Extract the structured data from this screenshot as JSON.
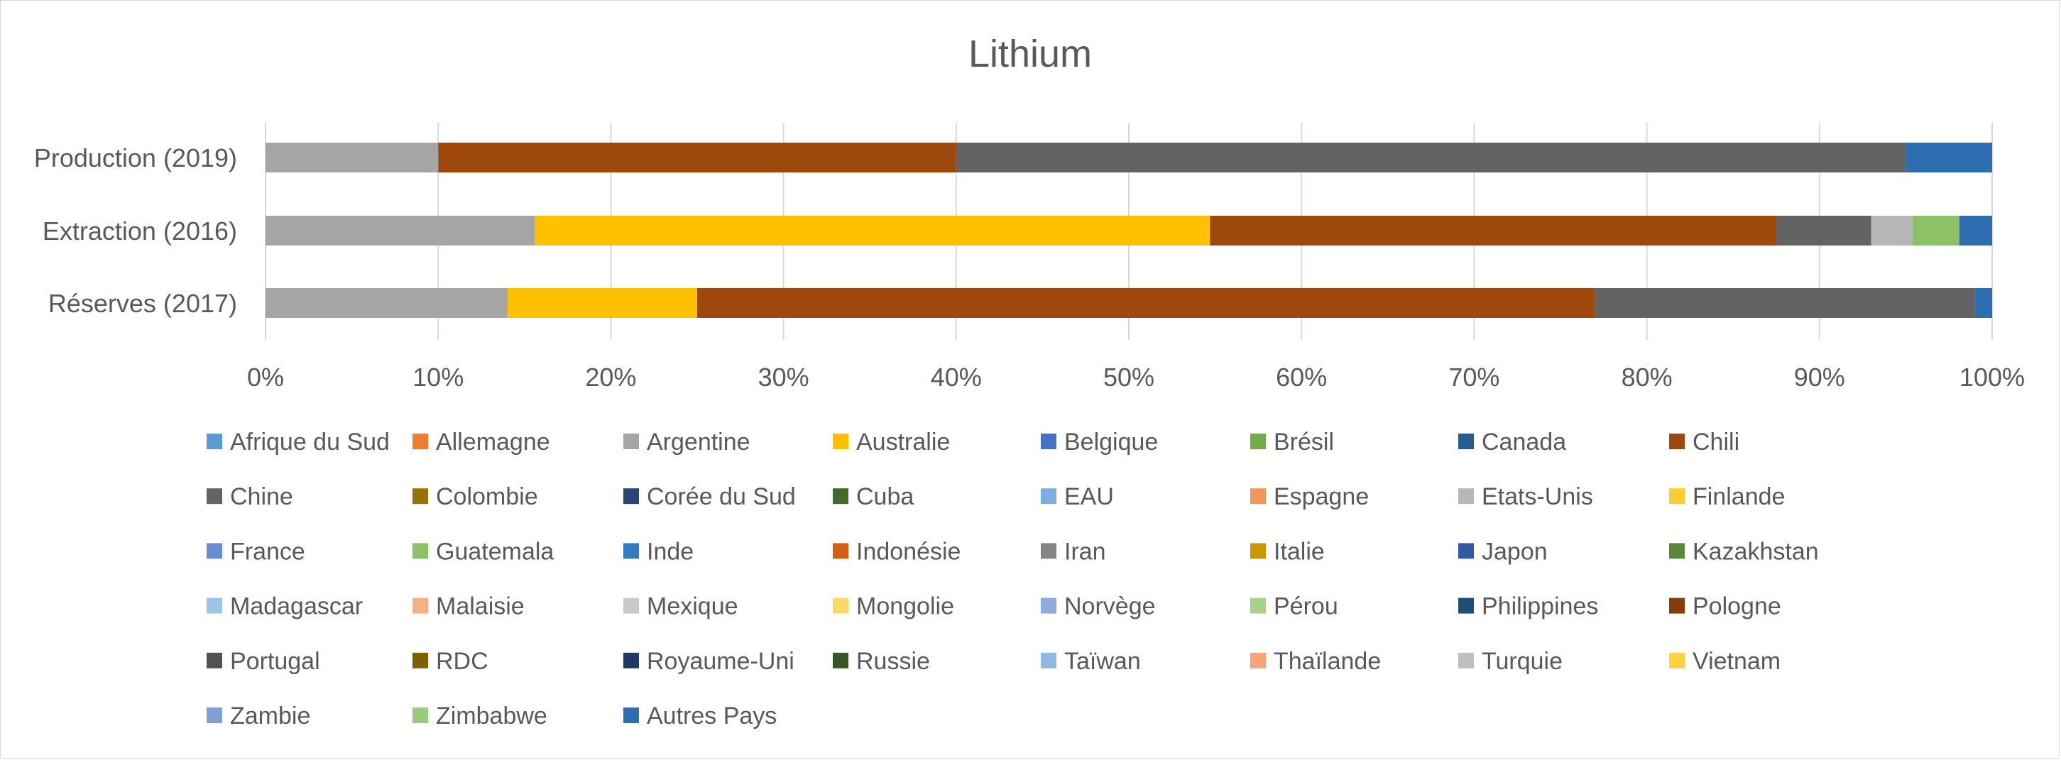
{
  "chart_data": {
    "type": "bar",
    "orientation": "horizontal",
    "stacked": "percent",
    "title": "Lithium",
    "categories": [
      "Production (2019)",
      "Extraction (2016)",
      "Réserves (2017)"
    ],
    "x_ticks": [
      "0%",
      "10%",
      "20%",
      "30%",
      "40%",
      "50%",
      "60%",
      "70%",
      "80%",
      "90%",
      "100%"
    ],
    "xlim": [
      0,
      100
    ],
    "grid": true,
    "legend_position": "bottom",
    "series": [
      {
        "name": "Afrique du Sud",
        "color": "#5B9BD5",
        "values": [
          0,
          0,
          0
        ]
      },
      {
        "name": "Allemagne",
        "color": "#ED7D31",
        "values": [
          0,
          0,
          0
        ]
      },
      {
        "name": "Argentine",
        "color": "#A5A5A5",
        "values": [
          10,
          15.6,
          14
        ]
      },
      {
        "name": "Australie",
        "color": "#FFC000",
        "values": [
          0,
          39.1,
          11
        ]
      },
      {
        "name": "Belgique",
        "color": "#4472C4",
        "values": [
          0,
          0,
          0
        ]
      },
      {
        "name": "Brésil",
        "color": "#70AD47",
        "values": [
          0,
          0,
          0
        ]
      },
      {
        "name": "Canada",
        "color": "#255E91",
        "values": [
          0,
          0,
          0
        ]
      },
      {
        "name": "Chili",
        "color": "#9E480E",
        "values": [
          30,
          32.8,
          52
        ]
      },
      {
        "name": "Chine",
        "color": "#636363",
        "values": [
          55,
          5.5,
          22
        ]
      },
      {
        "name": "Colombie",
        "color": "#997300",
        "values": [
          0,
          0,
          0
        ]
      },
      {
        "name": "Corée du Sud",
        "color": "#264478",
        "values": [
          0,
          0,
          0
        ]
      },
      {
        "name": "Cuba",
        "color": "#43682B",
        "values": [
          0,
          0,
          0
        ]
      },
      {
        "name": "EAU",
        "color": "#7CAFDD",
        "values": [
          0,
          0,
          0
        ]
      },
      {
        "name": "Espagne",
        "color": "#F1975A",
        "values": [
          0,
          0,
          0
        ]
      },
      {
        "name": "Etats-Unis",
        "color": "#B7B7B7",
        "values": [
          0,
          2.4,
          0
        ]
      },
      {
        "name": "Finlande",
        "color": "#FFCD33",
        "values": [
          0,
          0,
          0
        ]
      },
      {
        "name": "France",
        "color": "#698ED0",
        "values": [
          0,
          0,
          0
        ]
      },
      {
        "name": "Guatemala",
        "color": "#8CC168",
        "values": [
          0,
          2.7,
          0
        ]
      },
      {
        "name": "Inde",
        "color": "#327DC2",
        "values": [
          0,
          0,
          0
        ]
      },
      {
        "name": "Indonésie",
        "color": "#D26012",
        "values": [
          0,
          0,
          0
        ]
      },
      {
        "name": "Iran",
        "color": "#848484",
        "values": [
          0,
          0,
          0
        ]
      },
      {
        "name": "Italie",
        "color": "#CC9A00",
        "values": [
          0,
          0,
          0
        ]
      },
      {
        "name": "Japon",
        "color": "#335AA1",
        "values": [
          0,
          0,
          0
        ]
      },
      {
        "name": "Kazakhstan",
        "color": "#5A8A39",
        "values": [
          0,
          0,
          0
        ]
      },
      {
        "name": "Madagascar",
        "color": "#9DC3E6",
        "values": [
          0,
          0,
          0
        ]
      },
      {
        "name": "Malaisie",
        "color": "#F4B183",
        "values": [
          0,
          0,
          0
        ]
      },
      {
        "name": "Mexique",
        "color": "#C9C9C9",
        "values": [
          0,
          0,
          0
        ]
      },
      {
        "name": "Mongolie",
        "color": "#FFD966",
        "values": [
          0,
          0,
          0
        ]
      },
      {
        "name": "Norvège",
        "color": "#8FAADC",
        "values": [
          0,
          0,
          0
        ]
      },
      {
        "name": "Pérou",
        "color": "#A9D18E",
        "values": [
          0,
          0,
          0
        ]
      },
      {
        "name": "Philippines",
        "color": "#1F4E79",
        "values": [
          0,
          0,
          0
        ]
      },
      {
        "name": "Pologne",
        "color": "#843C0C",
        "values": [
          0,
          0,
          0
        ]
      },
      {
        "name": "Portugal",
        "color": "#525252",
        "values": [
          0,
          0,
          0
        ]
      },
      {
        "name": "RDC",
        "color": "#7F6000",
        "values": [
          0,
          0,
          0
        ]
      },
      {
        "name": "Royaume-Uni",
        "color": "#203864",
        "values": [
          0,
          0,
          0
        ]
      },
      {
        "name": "Russie",
        "color": "#375623",
        "values": [
          0,
          0,
          0
        ]
      },
      {
        "name": "Taïwan",
        "color": "#8FB9E3",
        "values": [
          0,
          0,
          0
        ]
      },
      {
        "name": "Thaïlande",
        "color": "#F4A675",
        "values": [
          0,
          0,
          0
        ]
      },
      {
        "name": "Turquie",
        "color": "#BFBFBF",
        "values": [
          0,
          0,
          0
        ]
      },
      {
        "name": "Vietnam",
        "color": "#FFD23F",
        "values": [
          0,
          0,
          0
        ]
      },
      {
        "name": "Zambie",
        "color": "#7F9FD6",
        "values": [
          0,
          0,
          0
        ]
      },
      {
        "name": "Zimbabwe",
        "color": "#9ACB7C",
        "values": [
          0,
          0,
          0
        ]
      },
      {
        "name": "Autres Pays",
        "color": "#2E6DB0",
        "values": [
          5,
          1.9,
          1
        ]
      }
    ]
  }
}
